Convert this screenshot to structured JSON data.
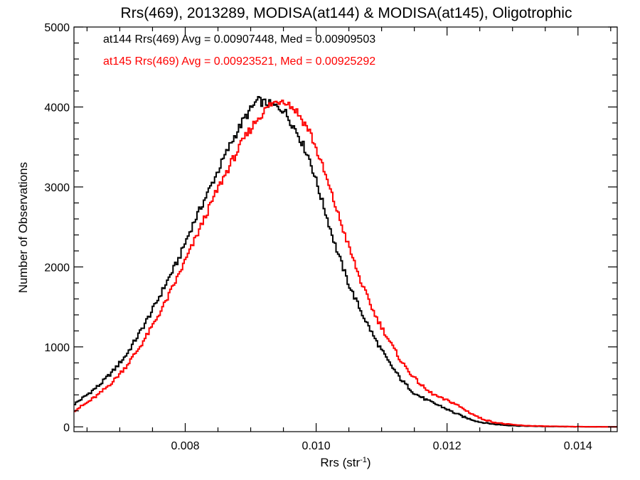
{
  "chart_data": {
    "type": "line",
    "title": "Rrs(469), 2013289, MODISA(at144) & MODISA(at145), Oligotrophic",
    "xlabel": "Rrs (str",
    "xlabel_sup": "-1",
    "xlabel_end": ")",
    "ylabel": "Number of Observations",
    "xlim": [
      0.0063,
      0.0146
    ],
    "ylim": [
      -60,
      5000
    ],
    "x_ticks": [
      0.008,
      0.01,
      0.012,
      0.014
    ],
    "x_tick_labels": [
      "0.008",
      "0.010",
      "0.012",
      "0.014"
    ],
    "y_ticks": [
      0,
      1000,
      2000,
      3000,
      4000,
      5000
    ],
    "y_tick_labels": [
      "0",
      "1000",
      "2000",
      "3000",
      "4000",
      "5000"
    ],
    "grid": false,
    "annotations": [
      {
        "text": "at144 Rrs(469) Avg = 0.00907448, Med = 0.00909503",
        "color": "#000000"
      },
      {
        "text": "at145 Rrs(469) Avg = 0.00923521, Med = 0.00925292",
        "color": "#ff0000"
      }
    ],
    "series": [
      {
        "color": "#000000",
        "x": [
          0.0063,
          0.0065,
          0.0067,
          0.0069,
          0.0071,
          0.0073,
          0.0075,
          0.0077,
          0.0079,
          0.0081,
          0.0083,
          0.0085,
          0.0087,
          0.0089,
          0.0091,
          0.0093,
          0.0095,
          0.0097,
          0.0099,
          0.0101,
          0.0103,
          0.0105,
          0.0107,
          0.0109,
          0.0111,
          0.0113,
          0.0115,
          0.0117,
          0.0119,
          0.0121,
          0.0123,
          0.0125,
          0.0127,
          0.0129,
          0.0131,
          0.0133,
          0.0135,
          0.0137,
          0.0139,
          0.0141,
          0.0143,
          0.0145
        ],
        "values": [
          280,
          400,
          530,
          700,
          900,
          1170,
          1460,
          1780,
          2100,
          2500,
          2850,
          3200,
          3550,
          3850,
          4080,
          4030,
          3970,
          3700,
          3350,
          2800,
          2250,
          1780,
          1420,
          1100,
          820,
          590,
          420,
          330,
          260,
          180,
          110,
          60,
          35,
          20,
          12,
          8,
          5,
          3,
          2,
          1,
          1,
          0
        ]
      },
      {
        "color": "#ff0000",
        "x": [
          0.0063,
          0.0065,
          0.0067,
          0.0069,
          0.0071,
          0.0073,
          0.0075,
          0.0077,
          0.0079,
          0.0081,
          0.0083,
          0.0085,
          0.0087,
          0.0089,
          0.0091,
          0.0093,
          0.0095,
          0.0097,
          0.0099,
          0.0101,
          0.0103,
          0.0105,
          0.0107,
          0.0109,
          0.0111,
          0.0113,
          0.0115,
          0.0117,
          0.0119,
          0.0121,
          0.0123,
          0.0125,
          0.0127,
          0.0129,
          0.0131,
          0.0133,
          0.0135,
          0.0137,
          0.0139,
          0.0141,
          0.0143,
          0.0145
        ],
        "values": [
          200,
          300,
          420,
          570,
          760,
          990,
          1260,
          1560,
          1900,
          2250,
          2620,
          2980,
          3300,
          3600,
          3850,
          4030,
          4100,
          3950,
          3700,
          3250,
          2750,
          2250,
          1780,
          1400,
          1100,
          820,
          610,
          450,
          360,
          300,
          200,
          110,
          60,
          35,
          20,
          12,
          8,
          5,
          3,
          2,
          1,
          0
        ]
      }
    ]
  }
}
